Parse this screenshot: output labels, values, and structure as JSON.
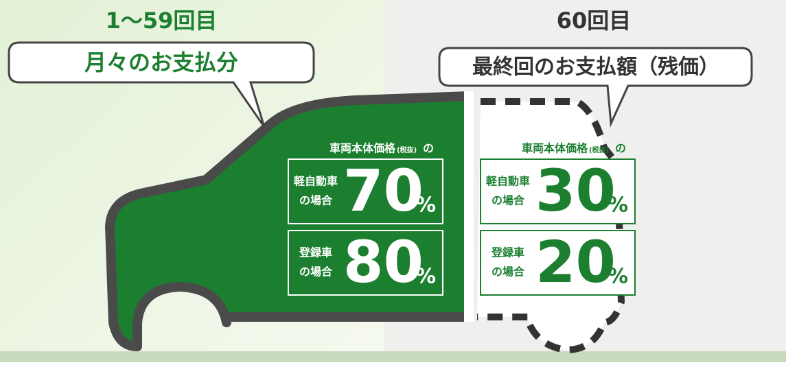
{
  "left": {
    "period": "1～59回目",
    "label": "月々のお支払分",
    "caption": "車両本体価格",
    "caption_note": "(税抜)",
    "caption_suffix": "の",
    "boxes": [
      {
        "line1": "軽自動車",
        "line2": "の場合",
        "value": "70",
        "unit": "%"
      },
      {
        "line1": "登録車",
        "line2": "の場合",
        "value": "80",
        "unit": "%"
      }
    ]
  },
  "right": {
    "period": "60回目",
    "label": "最終回のお支払額（残価）",
    "caption": "車両本体価格",
    "caption_note": "(税抜)",
    "caption_suffix": "の",
    "boxes": [
      {
        "line1": "軽自動車",
        "line2": "の場合",
        "value": "30",
        "unit": "%"
      },
      {
        "line1": "登録車",
        "line2": "の場合",
        "value": "20",
        "unit": "%"
      }
    ]
  }
}
